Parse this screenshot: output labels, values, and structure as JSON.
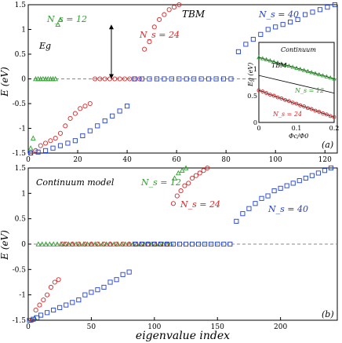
{
  "chart_data": [
    {
      "type": "scatter",
      "panel_label": "(a)",
      "annotation": "TBM",
      "ylabel": "E (eV)",
      "xlim": [
        0,
        125
      ],
      "ylim": [
        -1.5,
        1.5
      ],
      "xticks": [
        0,
        20,
        40,
        60,
        80,
        100,
        120
      ],
      "yticks": [
        -1.5,
        -1,
        -0.5,
        0,
        0.5,
        1,
        1.5
      ],
      "ytick_labels": [
        "-1.5",
        "-1",
        "-0.5",
        "0",
        "0.5",
        "1",
        "1.5"
      ],
      "gap_label": "Eg",
      "gap_arrow": {
        "x": 13,
        "y_from": 0,
        "y_to": 1.1
      },
      "zero_level": 0,
      "series": [
        {
          "name": "Ns = 12",
          "label_text": "N_s = 12",
          "color": "#2ca02c",
          "marker": "triangle",
          "x": [
            1,
            2,
            3,
            4,
            5,
            6,
            7,
            8,
            9,
            10,
            11,
            12,
            13
          ],
          "y": [
            -1.4,
            -1.2,
            0,
            0,
            0,
            0,
            0,
            0,
            0,
            0,
            0,
            1.1,
            1.2
          ]
        },
        {
          "name": "Ns = 24",
          "label_text": "N_s = 24",
          "color": "#d62728",
          "marker": "circle",
          "x": [
            1,
            3,
            5,
            7,
            9,
            11,
            13,
            15,
            17,
            19,
            21,
            23,
            25,
            27,
            29,
            31,
            33,
            35,
            37,
            39,
            41,
            43,
            45,
            47,
            49,
            51,
            53,
            55,
            57,
            59,
            61
          ],
          "y": [
            -1.5,
            -1.45,
            -1.35,
            -1.3,
            -1.25,
            -1.2,
            -1.1,
            -0.95,
            -0.8,
            -0.7,
            -0.6,
            -0.55,
            -0.5,
            0,
            0,
            0,
            0,
            0,
            0,
            0,
            0,
            0,
            0,
            0.6,
            0.75,
            1.05,
            1.2,
            1.3,
            1.4,
            1.45,
            1.5
          ]
        },
        {
          "name": "Ns = 40",
          "label_text": "N_s = 40",
          "color": "#1f3fd6",
          "marker": "square",
          "x": [
            1,
            4,
            7,
            10,
            13,
            16,
            19,
            22,
            25,
            28,
            31,
            34,
            37,
            40,
            43,
            46,
            49,
            52,
            55,
            58,
            61,
            64,
            67,
            70,
            73,
            76,
            79,
            82,
            85,
            88,
            91,
            94,
            97,
            100,
            103,
            106,
            109,
            112,
            115,
            118,
            121,
            124
          ],
          "y": [
            -1.5,
            -1.48,
            -1.45,
            -1.4,
            -1.35,
            -1.3,
            -1.25,
            -1.15,
            -1.05,
            -0.95,
            -0.85,
            -0.75,
            -0.65,
            -0.55,
            0,
            0,
            0,
            0,
            0,
            0,
            0,
            0,
            0,
            0,
            0,
            0,
            0,
            0,
            0.55,
            0.7,
            0.8,
            0.9,
            1.0,
            1.05,
            1.1,
            1.15,
            1.2,
            1.3,
            1.35,
            1.4,
            1.45,
            1.5
          ]
        }
      ],
      "inset": {
        "xlabel": "Φc/Φ0",
        "ylabel": "Eg (eV)",
        "xlim": [
          0,
          0.2
        ],
        "ylim": [
          0,
          1.5
        ],
        "xticks": [
          0,
          0.1,
          0.2
        ],
        "yticks": [
          0,
          0.5,
          1
        ],
        "labels": {
          "continuum": "Continuum",
          "tbm": "TBM",
          "ns12": "N_s = 12",
          "ns24": "N_s = 24"
        },
        "series": [
          {
            "name": "Continuum",
            "color": "#2ca02c",
            "marker": "triangle",
            "x": [
              0,
              0.01,
              0.02,
              0.03,
              0.04,
              0.05,
              0.06,
              0.07,
              0.08,
              0.09,
              0.1,
              0.11,
              0.12,
              0.13,
              0.14,
              0.15,
              0.16,
              0.17,
              0.18,
              0.19,
              0.2
            ],
            "y": [
              1.22,
              1.2,
              1.18,
              1.16,
              1.14,
              1.12,
              1.1,
              1.08,
              1.06,
              1.04,
              1.02,
              1.0,
              0.98,
              0.96,
              0.94,
              0.92,
              0.9,
              0.88,
              0.86,
              0.84,
              0.82
            ]
          },
          {
            "name": "TBM",
            "color": "#2ca02c",
            "marker": "line",
            "x": [
              0,
              0.2
            ],
            "y": [
              0.88,
              0.55
            ]
          },
          {
            "name": "N_s = 24",
            "color": "#d62728",
            "marker": "circle",
            "x": [
              0,
              0.01,
              0.02,
              0.03,
              0.04,
              0.05,
              0.06,
              0.07,
              0.08,
              0.09,
              0.1,
              0.11,
              0.12,
              0.13,
              0.14,
              0.15,
              0.16,
              0.17,
              0.18,
              0.19,
              0.2
            ],
            "y": [
              0.6,
              0.58,
              0.55,
              0.52,
              0.5,
              0.47,
              0.45,
              0.42,
              0.4,
              0.37,
              0.35,
              0.32,
              0.3,
              0.27,
              0.25,
              0.22,
              0.2,
              0.17,
              0.15,
              0.12,
              0.1
            ]
          }
        ]
      }
    },
    {
      "type": "scatter",
      "panel_label": "(b)",
      "annotation": "Continuum model",
      "xlabel": "eigenvalue index",
      "ylabel": "E (eV)",
      "xlim": [
        0,
        245
      ],
      "ylim": [
        -1.5,
        1.5
      ],
      "xticks": [
        0,
        50,
        100,
        150,
        200
      ],
      "yticks": [
        -1.5,
        -1,
        -0.5,
        0,
        0.5,
        1,
        1.5
      ],
      "ytick_labels": [
        "-1.5",
        "-1",
        "-0.5",
        "0",
        "0.5",
        "1",
        "1.5"
      ],
      "zero_level": 0,
      "series": [
        {
          "name": "Ns = 12",
          "label_text": "N_s = 12",
          "color": "#2ca02c",
          "marker": "triangle",
          "x": [
            2,
            5,
            8,
            11,
            14,
            17,
            20,
            23,
            26,
            29,
            32,
            35,
            38,
            41,
            44,
            47,
            50,
            53,
            56,
            59,
            62,
            65,
            68,
            71,
            74,
            77,
            80,
            83,
            86,
            89,
            92,
            95,
            98,
            101,
            104,
            107,
            110,
            113,
            116,
            119,
            122,
            125
          ],
          "y": [
            -1.5,
            -1.45,
            0,
            0,
            0,
            0,
            0,
            0,
            0,
            0,
            0,
            0,
            0,
            0,
            0,
            0,
            0,
            0,
            0,
            0,
            0,
            0,
            0,
            0,
            0,
            0,
            0,
            0,
            0,
            0,
            0,
            0,
            0,
            0,
            0,
            0,
            0,
            0,
            1.3,
            1.4,
            1.45,
            1.5
          ]
        },
        {
          "name": "Ns = 24",
          "label_text": "N_s = 24",
          "color": "#d62728",
          "marker": "circle",
          "x": [
            3,
            6,
            9,
            12,
            15,
            18,
            21,
            24,
            27,
            30,
            35,
            40,
            45,
            50,
            55,
            60,
            65,
            70,
            75,
            80,
            85,
            90,
            95,
            100,
            105,
            110,
            115,
            118,
            121,
            124,
            127,
            130,
            133,
            136,
            139,
            142
          ],
          "y": [
            -1.5,
            -1.3,
            -1.2,
            -1.1,
            -1.0,
            -0.85,
            -0.75,
            -0.7,
            0,
            0,
            0,
            0,
            0,
            0,
            0,
            0,
            0,
            0,
            0,
            0,
            0,
            0,
            0,
            0,
            0,
            0,
            0.8,
            0.95,
            1.05,
            1.15,
            1.2,
            1.3,
            1.35,
            1.4,
            1.45,
            1.5
          ]
        },
        {
          "name": "Ns = 40",
          "label_text": "N_s = 40",
          "color": "#1f3fd6",
          "marker": "square",
          "x": [
            1,
            4,
            7,
            10,
            15,
            20,
            25,
            30,
            35,
            40,
            45,
            50,
            55,
            60,
            65,
            70,
            75,
            80,
            85,
            90,
            95,
            100,
            105,
            110,
            115,
            120,
            125,
            130,
            135,
            140,
            145,
            150,
            155,
            160,
            165,
            170,
            175,
            180,
            185,
            190,
            195,
            200,
            205,
            210,
            215,
            220,
            225,
            230,
            235,
            240
          ],
          "y": [
            -1.5,
            -1.48,
            -1.45,
            -1.4,
            -1.35,
            -1.3,
            -1.25,
            -1.2,
            -1.15,
            -1.1,
            -1.0,
            -0.95,
            -0.9,
            -0.85,
            -0.75,
            -0.7,
            -0.6,
            -0.55,
            0,
            0,
            0,
            0,
            0,
            0,
            0,
            0,
            0,
            0,
            0,
            0,
            0,
            0,
            0,
            0,
            0.45,
            0.6,
            0.7,
            0.8,
            0.9,
            0.95,
            1.05,
            1.1,
            1.15,
            1.2,
            1.25,
            1.3,
            1.35,
            1.4,
            1.45,
            1.5
          ]
        }
      ]
    }
  ]
}
